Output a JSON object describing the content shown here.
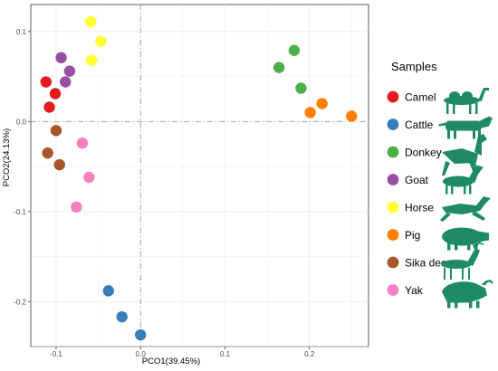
{
  "chart_data": {
    "type": "scatter",
    "xlabel": "PCO1(39.45%)",
    "ylabel": "PCO2(24.13%)",
    "xlim": [
      -0.13,
      0.27
    ],
    "ylim": [
      -0.25,
      0.13
    ],
    "x_ticks": [
      -0.1,
      0.0,
      0.1,
      0.2
    ],
    "x_tick_labels": [
      "-0.1",
      "0.0",
      "0.1",
      "0.2"
    ],
    "y_ticks": [
      -0.2,
      -0.1,
      0.0,
      0.1
    ],
    "y_tick_labels": [
      "-0.2",
      "-0.1",
      "0.0",
      "0.1"
    ],
    "grid": true,
    "reference_lines": {
      "x": 0,
      "y": 0
    },
    "legend_title": "Samples",
    "legend_position": "right",
    "series": [
      {
        "name": "Camel",
        "color": "#e41a1c",
        "icon": "camel-icon",
        "x": [
          -0.112,
          -0.101,
          -0.108
        ],
        "y": [
          0.044,
          0.031,
          0.016
        ]
      },
      {
        "name": "Cattle",
        "color": "#377eb8",
        "icon": "cattle-icon",
        "x": [
          -0.038,
          -0.022,
          0.0
        ],
        "y": [
          -0.188,
          -0.217,
          -0.237
        ]
      },
      {
        "name": "Donkey",
        "color": "#4daf4a",
        "icon": "donkey-icon",
        "x": [
          0.164,
          0.182,
          0.19
        ],
        "y": [
          0.06,
          0.079,
          0.037
        ]
      },
      {
        "name": "Goat",
        "color": "#984ea3",
        "icon": "goat-icon",
        "x": [
          -0.094,
          -0.084,
          -0.089
        ],
        "y": [
          0.071,
          0.056,
          0.044
        ]
      },
      {
        "name": "Horse",
        "color": "#ffff33",
        "icon": "horse-icon",
        "x": [
          -0.059,
          -0.047,
          -0.058
        ],
        "y": [
          0.111,
          0.089,
          0.068
        ]
      },
      {
        "name": "Pig",
        "color": "#ff7f00",
        "icon": "pig-icon",
        "x": [
          0.201,
          0.215,
          0.25
        ],
        "y": [
          0.01,
          0.02,
          0.006
        ]
      },
      {
        "name": "Sika deer",
        "color": "#a65628",
        "icon": "sika-deer-icon",
        "x": [
          -0.1,
          -0.11,
          -0.096
        ],
        "y": [
          -0.01,
          -0.035,
          -0.048
        ]
      },
      {
        "name": "Yak",
        "color": "#f781bf",
        "icon": "yak-icon",
        "x": [
          -0.069,
          -0.061,
          -0.076
        ],
        "y": [
          -0.024,
          -0.062,
          -0.095
        ]
      }
    ]
  }
}
